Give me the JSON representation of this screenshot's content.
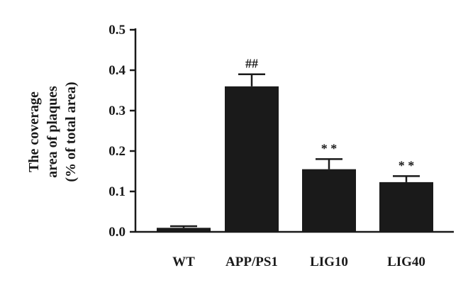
{
  "chart_data": {
    "type": "bar",
    "categories": [
      "WT",
      "APP/PS1",
      "LIG10",
      "LIG40"
    ],
    "values": [
      0.01,
      0.36,
      0.155,
      0.123
    ],
    "errors": [
      0.004,
      0.03,
      0.025,
      0.015
    ],
    "annotations": [
      "",
      "##",
      "* *",
      "* *"
    ],
    "ylabel_lines": [
      "The coverage",
      "area of plaques",
      "(% of total area)"
    ],
    "xlabel": "",
    "ylim": [
      0,
      0.5
    ],
    "yticks": [
      0.0,
      0.1,
      0.2,
      0.3,
      0.4,
      0.5
    ],
    "ytick_labels": [
      "0.0",
      "0.1",
      "0.2",
      "0.3",
      "0.4",
      "0.5"
    ],
    "grid": false,
    "bar_color": "#1a1a1a"
  }
}
